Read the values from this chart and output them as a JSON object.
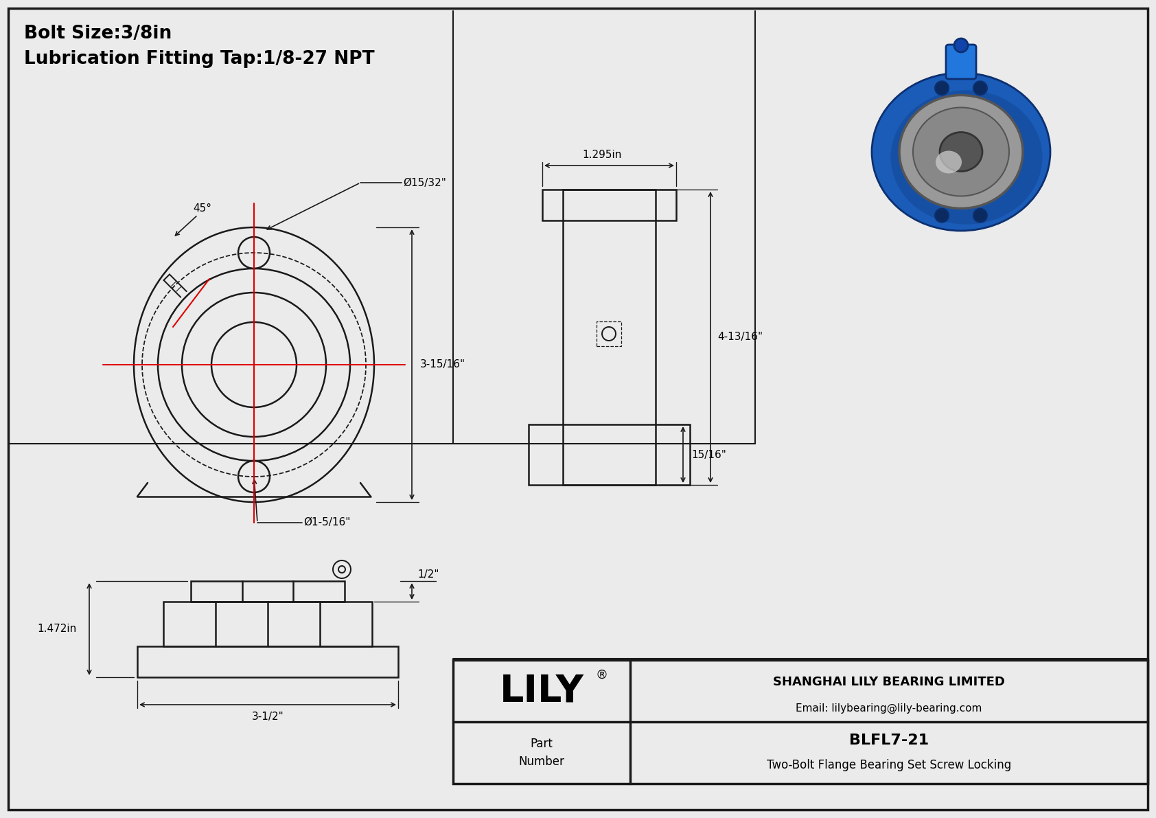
{
  "bg_color": "#ebebeb",
  "line_color": "#1a1a1a",
  "red_color": "#dd0000",
  "blue_dark": "#0d3070",
  "blue_mid": "#1a5cb8",
  "blue_light": "#2277dd",
  "metal_dark": "#555555",
  "metal_mid": "#999999",
  "metal_light": "#cccccc",
  "title_line1": "Bolt Size:3/8in",
  "title_line2": "Lubrication Fitting Tap:1/8-27 NPT",
  "company": "SHANGHAI LILY BEARING LIMITED",
  "email": "Email: lilybearing@lily-bearing.com",
  "part_label": "Part\nNumber",
  "part_number": "BLFL7-21",
  "part_desc": "Two-Bolt Flange Bearing Set Screw Locking",
  "lily_text": "LILY",
  "dim_15_32": "Ø15/32\"",
  "dim_45": "45°",
  "dim_3_15_16": "3-15/16\"",
  "dim_1_5_16": "Ø1-5/16\"",
  "dim_1_295": "1.295in",
  "dim_4_13_16": "4-13/16\"",
  "dim_15_16": "15/16\"",
  "dim_1_472": "1.472in",
  "dim_1_2": "1/2\"",
  "dim_3_1_2": "3-1/2\""
}
